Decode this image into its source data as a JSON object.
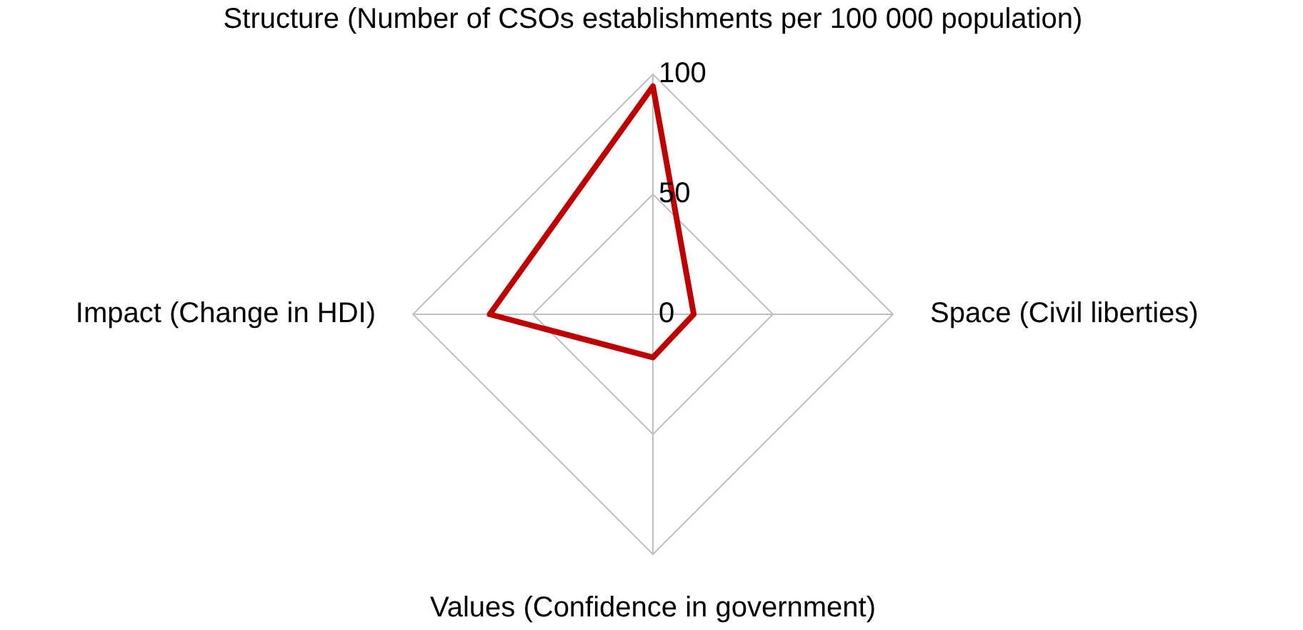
{
  "chart_data": {
    "type": "radar",
    "categories": [
      "Structure (Number of CSOs establishments per 100 000 population)",
      "Space (Civil liberties)",
      "Values (Confidence in government)",
      "Impact (Change in HDI)"
    ],
    "series": [
      {
        "color": "#c00000",
        "values": [
          95,
          17,
          18,
          68
        ]
      }
    ],
    "ylim": [
      0,
      100
    ],
    "yticks": [
      0,
      50,
      100
    ],
    "grid": true,
    "legend": false,
    "marker": "none",
    "line_style": "solid"
  }
}
